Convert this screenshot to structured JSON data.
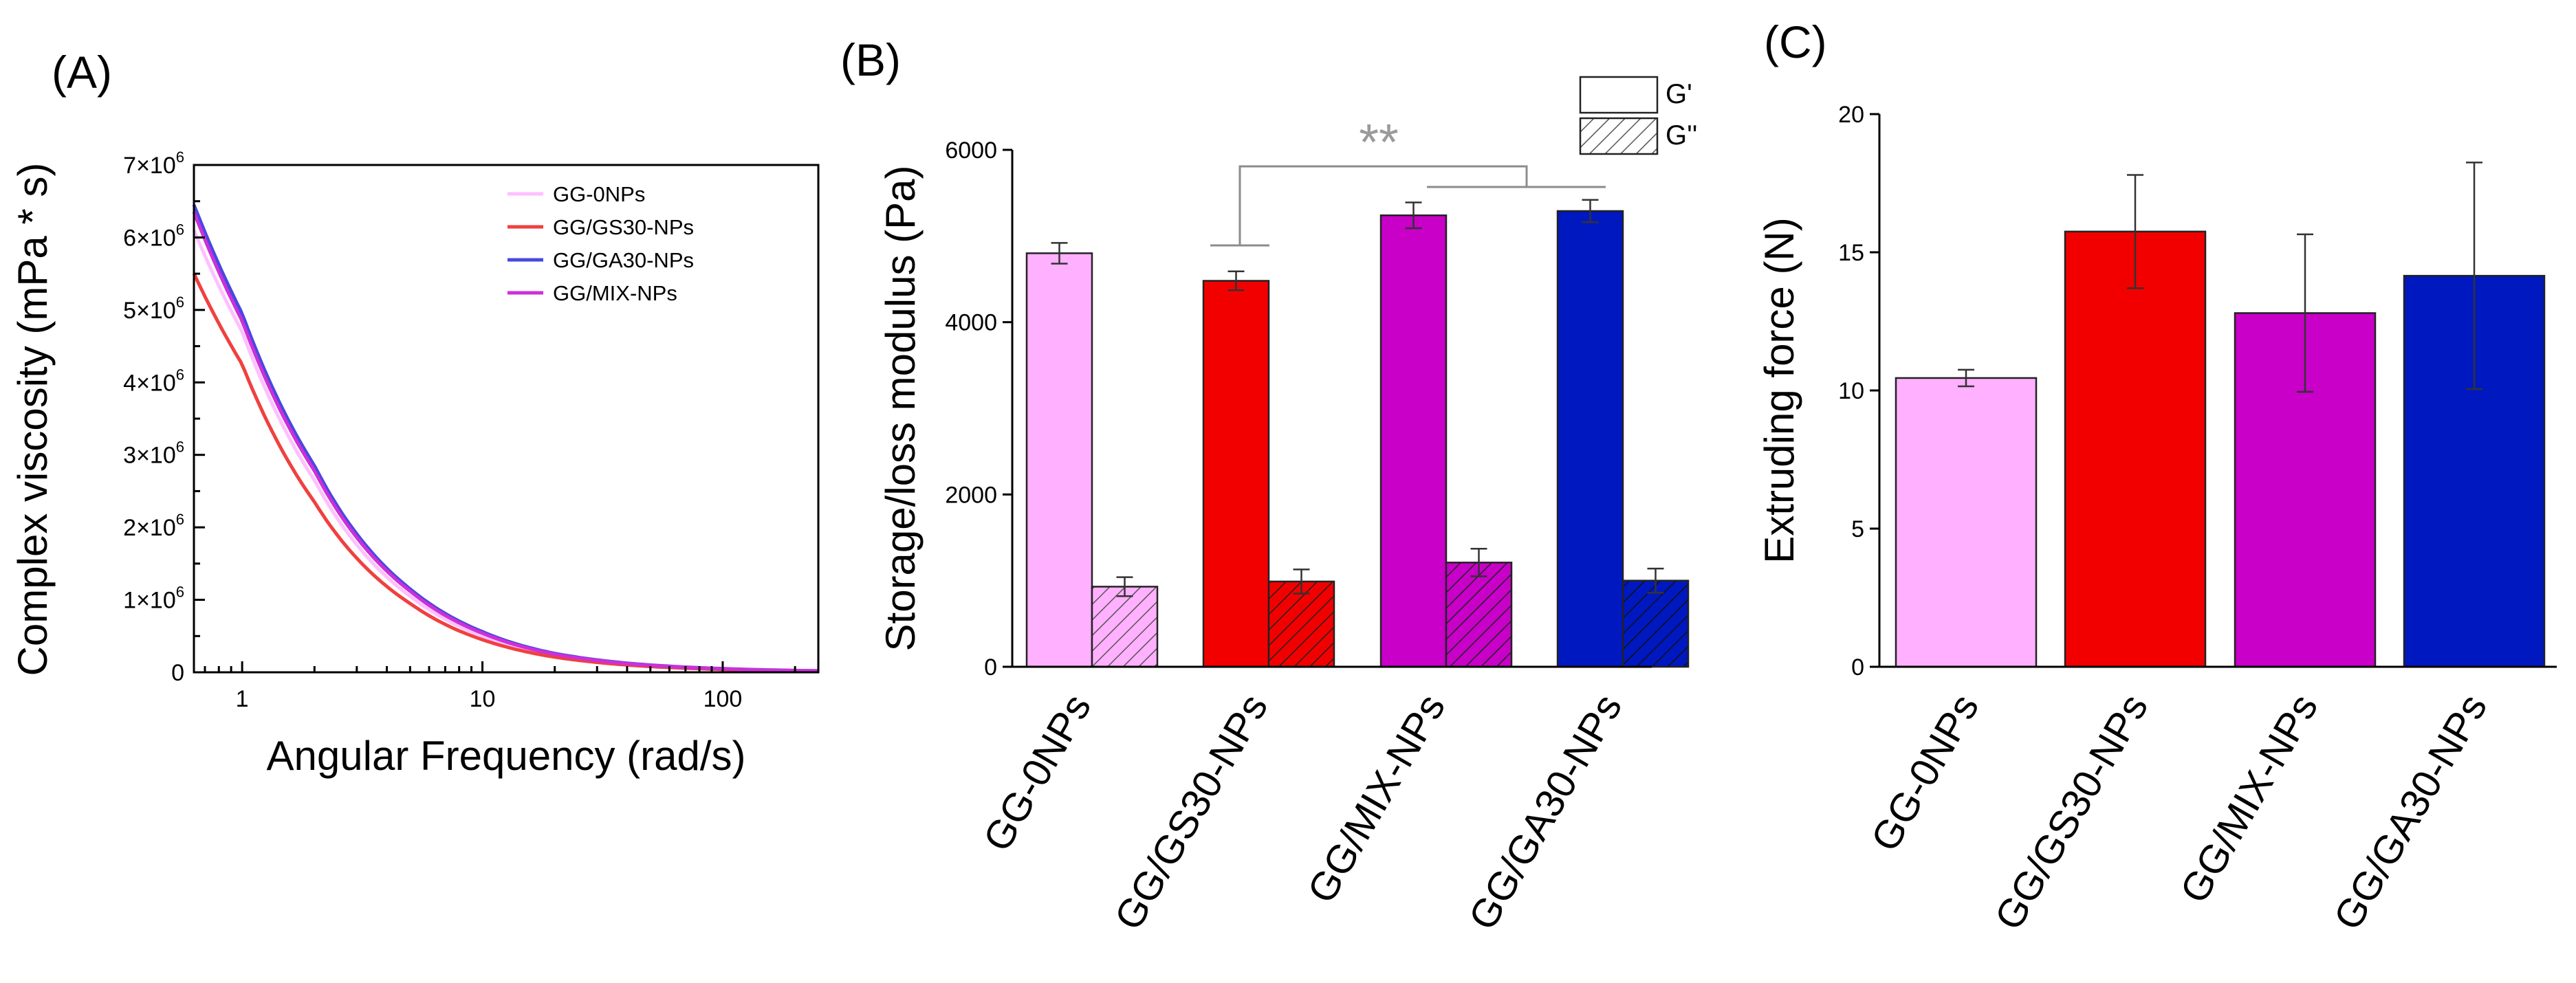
{
  "colors": {
    "GG-0NPs": "#ffb0ff",
    "GG/GS30-NPs": "#f20000",
    "GG/MIX-NPs": "#c800c8",
    "GG/GA30-NPs": "#0018c0",
    "line_GG-0NPs": "#ffc0ff",
    "line_GG/GS30-NPs": "#f04040",
    "line_GG/GA30-NPs": "#4848e0",
    "line_GG/MIX-NPs": "#cc30d8"
  },
  "chart_data": [
    {
      "type": "line",
      "panel_label": "(A)",
      "xlabel": "Angular Frequency (rad/s)",
      "ylabel": "Complex viscosity (mPa * s)",
      "x_scale": "log",
      "xlim": [
        0.63,
        250
      ],
      "ylim": [
        0,
        7000000
      ],
      "x_ticks": [
        1,
        10,
        100
      ],
      "x_tick_labels": [
        "1",
        "10",
        "100"
      ],
      "y_ticks": [
        0,
        1000000,
        2000000,
        3000000,
        4000000,
        5000000,
        6000000,
        7000000
      ],
      "y_tick_base": [
        "0",
        "1×10",
        "2×10",
        "3×10",
        "4×10",
        "5×10",
        "6×10",
        "7×10"
      ],
      "y_tick_exp": [
        "",
        "6",
        "6",
        "6",
        "6",
        "6",
        "6",
        "6"
      ],
      "series": [
        {
          "name": "GG-0NPs",
          "x": [
            0.63,
            1,
            2,
            5,
            10,
            20,
            50,
            100,
            250
          ],
          "y": [
            6100000,
            4700000,
            2650000,
            1050000,
            500000,
            230000,
            90000,
            45000,
            18000
          ]
        },
        {
          "name": "GG/GS30-NPs",
          "x": [
            0.63,
            1,
            2,
            5,
            10,
            20,
            50,
            100,
            250
          ],
          "y": [
            5500000,
            4250000,
            2350000,
            950000,
            450000,
            210000,
            80000,
            40000,
            16000
          ]
        },
        {
          "name": "GG/GA30-NPs",
          "x": [
            0.63,
            1,
            2,
            5,
            10,
            20,
            50,
            100,
            250
          ],
          "y": [
            6450000,
            4950000,
            2850000,
            1150000,
            560000,
            260000,
            100000,
            50000,
            20000
          ]
        },
        {
          "name": "GG/MIX-NPs",
          "x": [
            0.63,
            1,
            2,
            5,
            10,
            20,
            50,
            100,
            250
          ],
          "y": [
            6350000,
            4850000,
            2780000,
            1120000,
            540000,
            250000,
            95000,
            48000,
            19000
          ]
        }
      ],
      "legend": [
        "GG-0NPs",
        "GG/GS30-NPs",
        "GG/GA30-NPs",
        "GG/MIX-NPs"
      ]
    },
    {
      "type": "bar",
      "panel_label": "(B)",
      "ylabel": "Storage/loss modulus (Pa)",
      "ylim": [
        0,
        6000
      ],
      "y_ticks": [
        0,
        2000,
        4000,
        6000
      ],
      "categories": [
        "GG-0NPs",
        "GG/GS30-NPs",
        "GG/MIX-NPs",
        "GG/GA30-NPs"
      ],
      "series": [
        {
          "name": "G'",
          "values": [
            4800,
            4480,
            5240,
            5290
          ],
          "errors": [
            120,
            110,
            150,
            130
          ]
        },
        {
          "name": "G''",
          "values": [
            930,
            990,
            1210,
            1000
          ],
          "errors": [
            110,
            140,
            160,
            140
          ]
        }
      ],
      "legend": [
        "G'",
        "G''"
      ],
      "significance": "**"
    },
    {
      "type": "bar",
      "panel_label": "(C)",
      "ylabel": "Extruding force (N)",
      "ylim": [
        0,
        20
      ],
      "y_ticks": [
        0,
        5,
        10,
        15,
        20
      ],
      "categories": [
        "GG-0NPs",
        "GG/GS30-NPs",
        "GG/MIX-NPs",
        "GG/GA30-NPs"
      ],
      "values": [
        10.45,
        15.75,
        12.8,
        14.15
      ],
      "errors": [
        0.3,
        2.05,
        2.85,
        4.1
      ]
    }
  ]
}
